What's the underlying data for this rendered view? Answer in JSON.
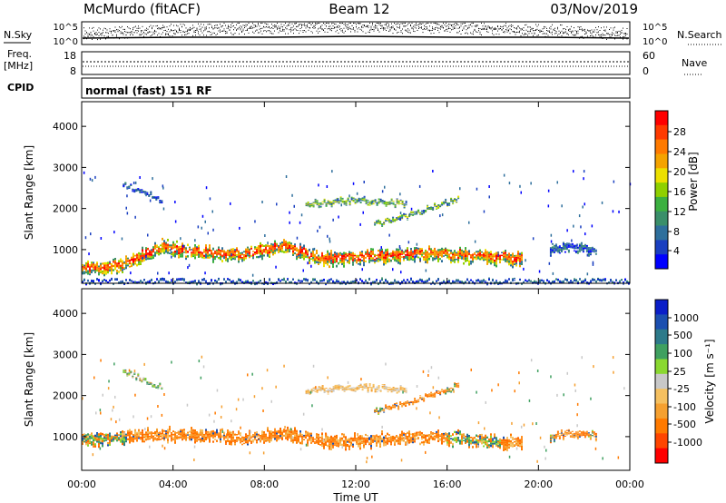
{
  "header": {
    "station": "McMurdo (fitACF)",
    "beam": "Beam 12",
    "date": "03/Nov/2019"
  },
  "top_strips": {
    "nsky_label": "N.Sky",
    "nsky_ticks": [
      "10^5",
      "10^0"
    ],
    "nsearch_label": "N.Search",
    "nsearch_ticks": [
      "10^5",
      "10^0"
    ],
    "freq_label_1": "Freq.",
    "freq_label_2": "[MHz]",
    "freq_ticks": [
      "18",
      "8"
    ],
    "nave_label": "Nave",
    "nave_ticks": [
      "60",
      "0"
    ],
    "cpid_label": "CPID",
    "cpid_text": "normal (fast) 151 RF"
  },
  "chart_data": [
    {
      "type": "heatmap",
      "panel": "power",
      "ylabel": "Slant Range [km]",
      "yticks": [
        1000,
        2000,
        3000,
        4000
      ],
      "ylim": [
        180,
        4600
      ],
      "xlim": [
        0,
        24
      ],
      "colorbar_label": "Power [dB]",
      "colorbar_ticks": [
        28,
        24,
        20,
        16,
        12,
        8,
        4
      ],
      "colorbar_colors": [
        "#ff0000",
        "#ff3a00",
        "#ff7a00",
        "#f4a300",
        "#ece000",
        "#8fd000",
        "#3cb040",
        "#3a8f6a",
        "#2e6f9c",
        "#1a3fc0",
        "#0000ff"
      ],
      "bands": [
        {
          "t0": 0.0,
          "t1": 19.3,
          "r": [
            500,
            620,
            1050,
            900,
            880,
            1060,
            760,
            800,
            860,
            900,
            820,
            760
          ],
          "w": 320,
          "level": "strong"
        },
        {
          "t0": 9.8,
          "t1": 14.2,
          "r": [
            2100,
            2200,
            2100
          ],
          "w": 120,
          "level": "medium"
        },
        {
          "t0": 12.8,
          "t1": 16.5,
          "r": [
            1600,
            1900,
            2250
          ],
          "w": 110,
          "level": "medium"
        },
        {
          "t0": 1.8,
          "t1": 3.5,
          "r": [
            2600,
            2400,
            2200
          ],
          "w": 80,
          "level": "weak"
        },
        {
          "t0": 20.5,
          "t1": 22.5,
          "r": [
            1000,
            1050,
            980
          ],
          "w": 200,
          "level": "weak"
        },
        {
          "t0": 0.0,
          "t1": 24.0,
          "r": [
            230,
            230,
            230
          ],
          "w": 60,
          "level": "weak"
        }
      ]
    },
    {
      "type": "heatmap",
      "panel": "velocity",
      "ylabel": "Slant Range [km]",
      "xlabel": "Time UT",
      "yticks": [
        1000,
        2000,
        3000,
        4000
      ],
      "ylim": [
        180,
        4600
      ],
      "xlim": [
        0,
        24
      ],
      "xticks": [
        "00:00",
        "04:00",
        "08:00",
        "12:00",
        "16:00",
        "20:00",
        "00:00"
      ],
      "colorbar_label": "Velocity [m s⁻¹]",
      "colorbar_ticks": [
        1000,
        500,
        100,
        25,
        -25,
        -100,
        -500,
        -1000
      ],
      "colorbar_colors": [
        "#0a1ec8",
        "#1b4fb0",
        "#2d7a8a",
        "#3fa060",
        "#8ad830",
        "#c8c8c8",
        "#f5c060",
        "#f5a030",
        "#ff7a00",
        "#ff4500",
        "#ff0000"
      ],
      "bands": [
        {
          "t0": 0.0,
          "t1": 19.3,
          "r": [
            920,
            980,
            1050,
            1000,
            950,
            1080,
            900,
            880,
            960,
            980,
            900,
            850
          ],
          "w": 300,
          "level": "orange"
        },
        {
          "t0": 9.8,
          "t1": 14.2,
          "r": [
            2100,
            2200,
            2150
          ],
          "w": 120,
          "level": "lightorange"
        },
        {
          "t0": 12.8,
          "t1": 16.5,
          "r": [
            1600,
            1900,
            2250
          ],
          "w": 110,
          "level": "orange"
        },
        {
          "t0": 1.8,
          "t1": 3.5,
          "r": [
            2600,
            2400,
            2200
          ],
          "w": 80,
          "level": "mixed"
        },
        {
          "t0": 20.5,
          "t1": 22.5,
          "r": [
            1000,
            1080,
            1000
          ],
          "w": 180,
          "level": "orange"
        }
      ]
    }
  ]
}
